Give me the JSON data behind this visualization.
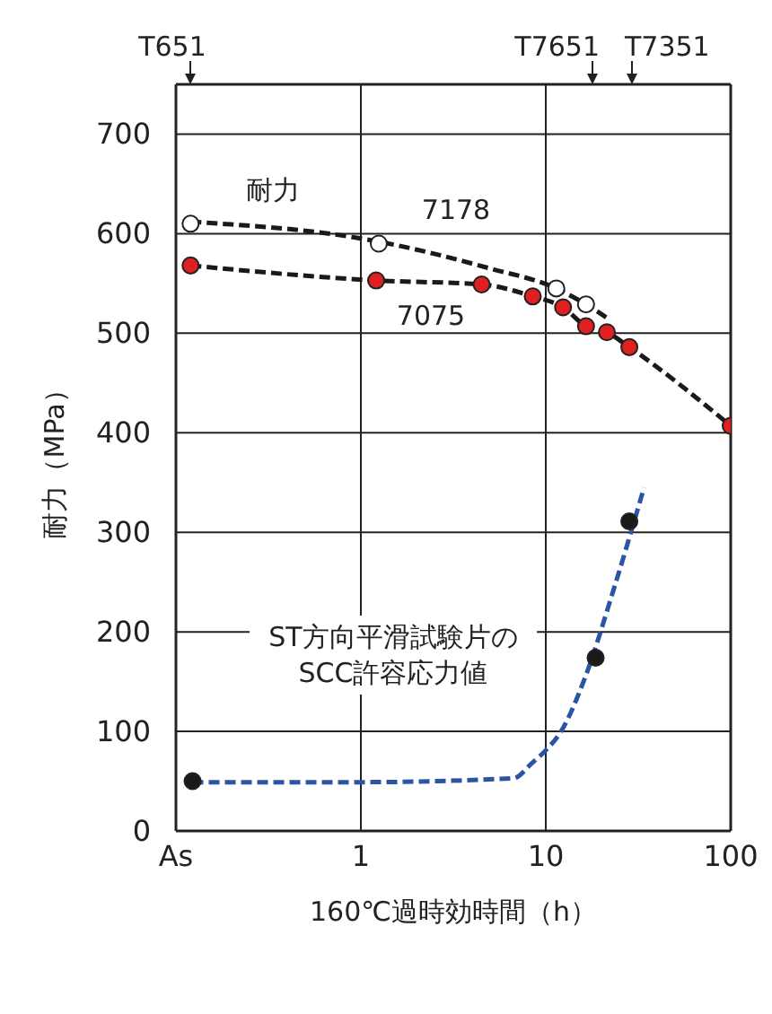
{
  "chart_data": {
    "type": "line",
    "xlabel": "160℃過時効時間（h）",
    "ylabel": "耐力（MPa）",
    "log": "x",
    "grid": true,
    "xlim": [
      0.1,
      100
    ],
    "xticks": [
      {
        "value": 0.1,
        "label": "As"
      },
      1,
      10,
      100
    ],
    "ylim": [
      0,
      750
    ],
    "yticks": [
      0,
      100,
      200,
      300,
      400,
      500,
      600,
      700
    ],
    "series": [
      {
        "color": "#1a1a1a",
        "line_style": "dashed",
        "marker": "none",
        "x": [
          0.12,
          1.25,
          5,
          11.4,
          16.5,
          22
        ],
        "values": [
          612,
          592,
          565,
          545,
          529,
          514
        ]
      },
      {
        "type": "scatter",
        "color": "#ffffff",
        "marker": "circle",
        "x": [
          0.12,
          1.25,
          11.4,
          16.5
        ],
        "values": [
          610,
          590,
          545,
          529
        ]
      },
      {
        "color": "#1a1a1a",
        "line_style": "dashed",
        "marker": "none",
        "x": [
          0.12,
          1.21,
          4.5,
          8.5,
          12.4,
          16.5,
          21.4,
          28.3,
          100
        ],
        "values": [
          568,
          553,
          549,
          537,
          526,
          507,
          501,
          486,
          407
        ]
      },
      {
        "type": "scatter",
        "color": "#e02020",
        "marker": "circle",
        "x": [
          0.12,
          1.21,
          4.5,
          8.5,
          12.4,
          16.5,
          21.4,
          28.3,
          100
        ],
        "values": [
          568,
          553,
          549,
          537,
          526,
          507,
          501,
          486,
          407
        ]
      },
      {
        "color": "#2a55a5",
        "line_style": "dashed",
        "marker": "none",
        "x": [
          0.123,
          1,
          6.7,
          8.4,
          10,
          12.1,
          16.3,
          23.5,
          34
        ],
        "values": [
          49,
          49,
          53,
          68,
          81,
          100,
          154,
          245,
          345
        ]
      },
      {
        "type": "scatter",
        "color": "#1a1a1a",
        "marker": "circle",
        "x": [
          0.123,
          18.6,
          28.3
        ],
        "values": [
          50,
          174,
          311
        ]
      }
    ],
    "annotations": [
      "T651",
      "T7651",
      "T7351",
      "耐力",
      "7178",
      "7075",
      "ST方向平滑試験片の\nSCC許容応力値"
    ]
  }
}
